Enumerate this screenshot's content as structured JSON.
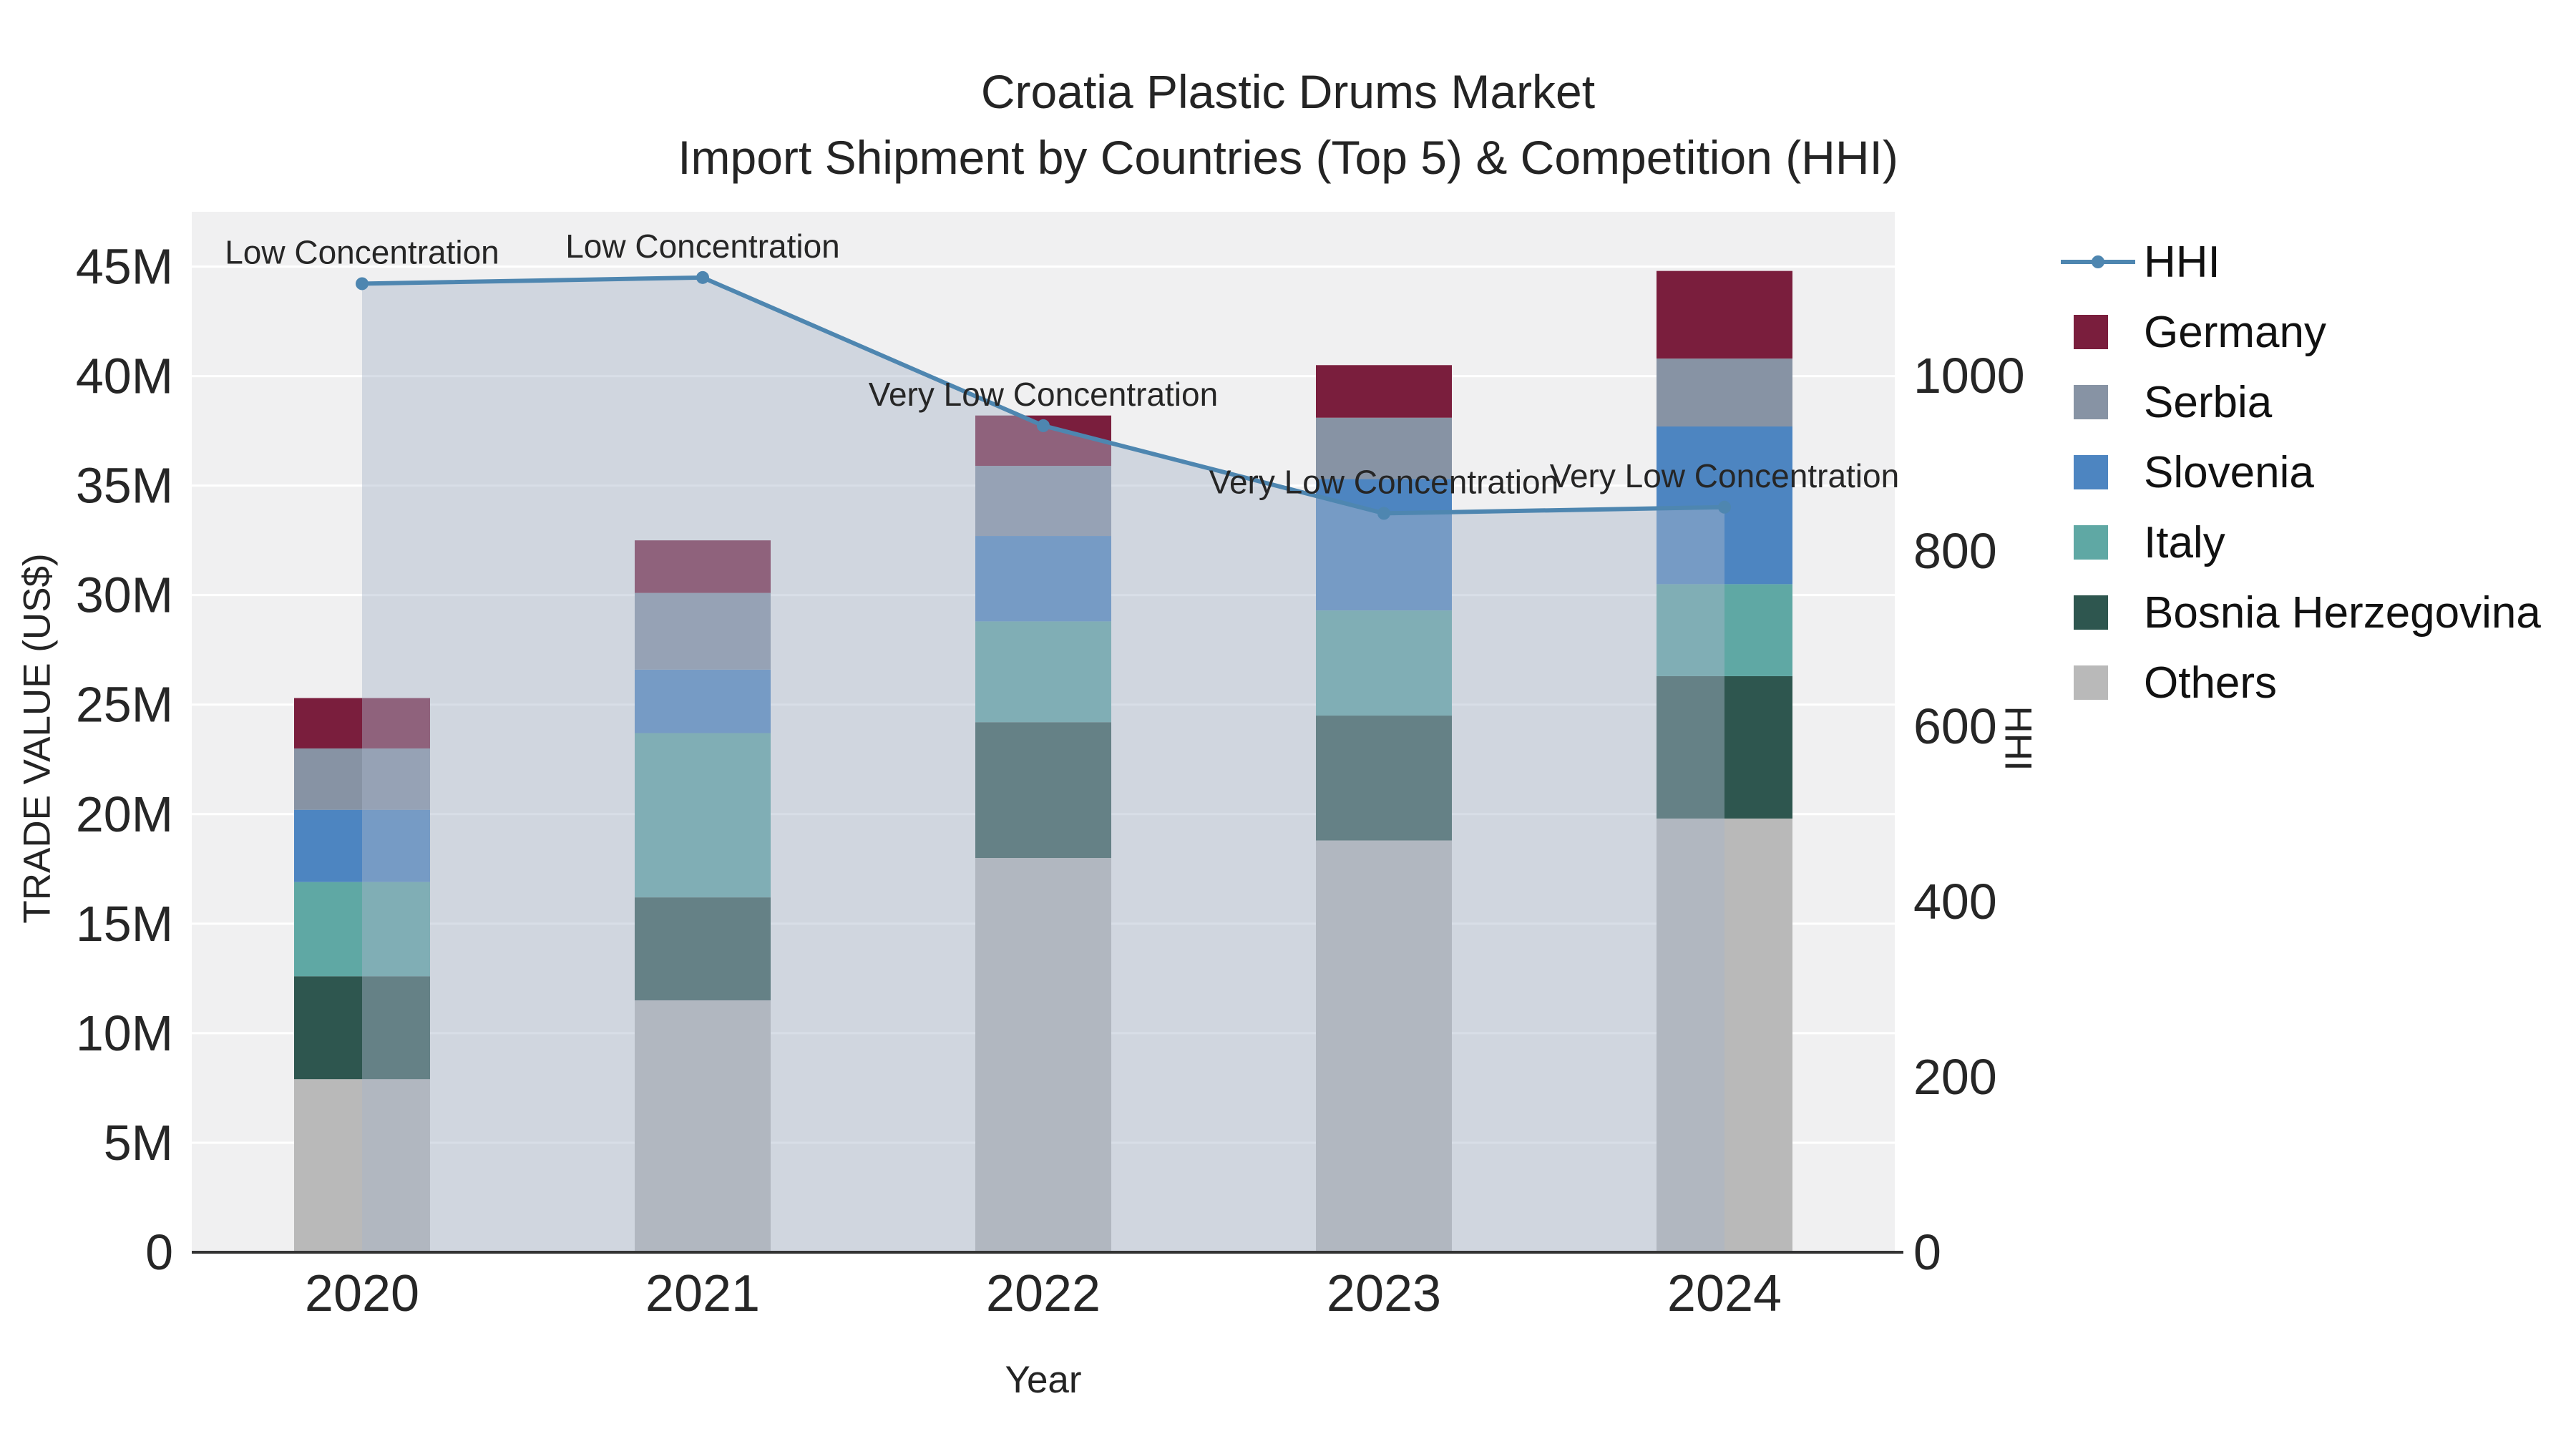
{
  "chart_data": {
    "type": "bar",
    "subtype": "stacked-bars-with-hhi-line-area",
    "title_line1": "Croatia Plastic Drums Market",
    "title_line2": "Import Shipment by Countries (Top 5) & Competition (HHI)",
    "xlabel": "Year",
    "ylabel_left": "TRADE VALUE (US$)",
    "ylabel_right": "HHI",
    "categories": [
      "2020",
      "2021",
      "2022",
      "2023",
      "2024"
    ],
    "series": [
      {
        "name": "Others",
        "color": "#b9b9b9",
        "values": [
          7900000,
          11500000,
          18000000,
          18800000,
          19800000
        ]
      },
      {
        "name": "Bosnia Herzegovina",
        "color": "#2e564f",
        "values": [
          4700000,
          4700000,
          6200000,
          5700000,
          6500000
        ]
      },
      {
        "name": "Italy",
        "color": "#5fa8a4",
        "values": [
          4300000,
          7500000,
          4600000,
          4800000,
          4200000
        ]
      },
      {
        "name": "Slovenia",
        "color": "#4d85c1",
        "values": [
          3300000,
          2900000,
          3900000,
          6000000,
          7200000
        ]
      },
      {
        "name": "Serbia",
        "color": "#8793a4",
        "values": [
          2800000,
          3500000,
          3200000,
          2800000,
          3100000
        ]
      },
      {
        "name": "Germany",
        "color": "#7a1e3d",
        "values": [
          2300000,
          2400000,
          2300000,
          2400000,
          4000000
        ]
      }
    ],
    "totals": [
      25300000,
      32500000,
      38200000,
      40500000,
      44800000
    ],
    "hhi": {
      "name": "HHI",
      "line_color": "#4e86b0",
      "fill_color": "rgba(168,182,201,0.45)",
      "values": [
        1105,
        1112,
        943,
        843,
        850
      ],
      "annotations": [
        "Low Concentration",
        "Low Concentration",
        "Very Low Concentration",
        "Very Low Concentration",
        "Very Low Concentration"
      ]
    },
    "legend_order": [
      "HHI",
      "Germany",
      "Serbia",
      "Slovenia",
      "Italy",
      "Bosnia Herzegovina",
      "Others"
    ],
    "y_left": {
      "max": 47500000,
      "ticks": [
        {
          "value": 0,
          "label": "0"
        },
        {
          "value": 5000000,
          "label": "5M"
        },
        {
          "value": 10000000,
          "label": "10M"
        },
        {
          "value": 15000000,
          "label": "15M"
        },
        {
          "value": 20000000,
          "label": "20M"
        },
        {
          "value": 25000000,
          "label": "25M"
        },
        {
          "value": 30000000,
          "label": "30M"
        },
        {
          "value": 35000000,
          "label": "35M"
        },
        {
          "value": 40000000,
          "label": "40M"
        },
        {
          "value": 45000000,
          "label": "45M"
        }
      ]
    },
    "y_right": {
      "max": 1187,
      "ticks": [
        {
          "value": 0,
          "label": "0"
        },
        {
          "value": 200,
          "label": "200"
        },
        {
          "value": 400,
          "label": "400"
        },
        {
          "value": 600,
          "label": "600"
        },
        {
          "value": 800,
          "label": "800"
        },
        {
          "value": 1000,
          "label": "1000"
        }
      ]
    },
    "grid": "horizontal-white",
    "plot_background": "#f0f0f1",
    "legend_position": "right"
  }
}
